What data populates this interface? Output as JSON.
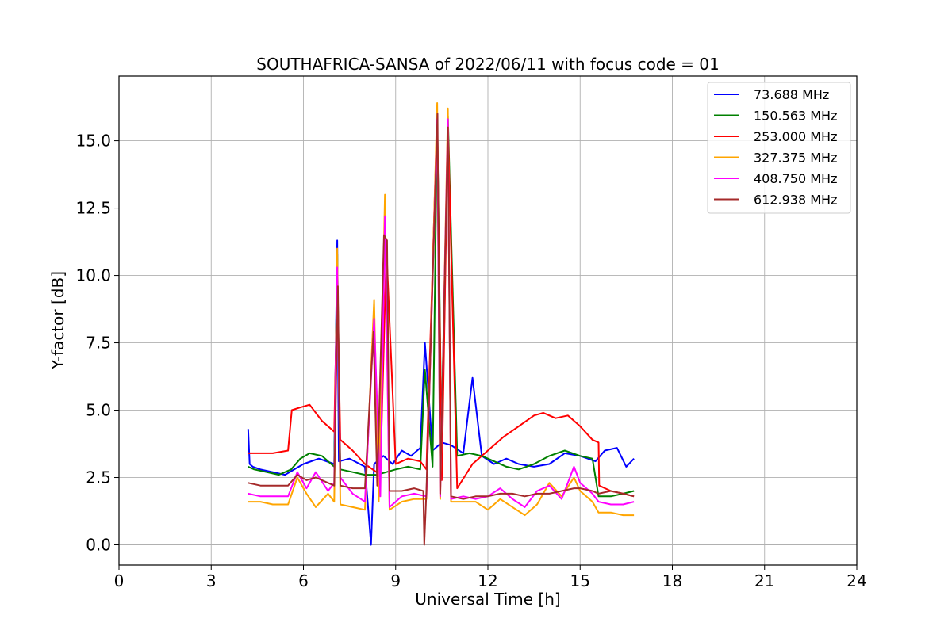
{
  "chart_data": {
    "type": "line",
    "title": "SOUTHAFRICA-SANSA of 2022/06/11 with focus code = 01",
    "xlabel": "Universal Time [h]",
    "ylabel": "Y-factor [dB]",
    "xlim": [
      0,
      24
    ],
    "ylim": [
      -0.75,
      17.4
    ],
    "xticks": [
      0,
      3,
      6,
      9,
      12,
      15,
      18,
      21,
      24
    ],
    "xtick_labels": [
      "0",
      "3",
      "6",
      "9",
      "12",
      "15",
      "18",
      "21",
      "24"
    ],
    "yticks": [
      0,
      2.5,
      5,
      7.5,
      10,
      12.5,
      15
    ],
    "ytick_labels": [
      "0.0",
      "2.5",
      "5.0",
      "7.5",
      "10.0",
      "12.5",
      "15.0"
    ],
    "grid": true,
    "legend_position": "top-right",
    "series": [
      {
        "name": " 73.688 MHz",
        "color": "#0000ff",
        "x": [
          4.2,
          4.25,
          4.35,
          4.6,
          5.0,
          5.4,
          5.7,
          6.0,
          6.5,
          7.0,
          7.1,
          7.15,
          7.5,
          8.0,
          8.2,
          8.3,
          8.6,
          8.9,
          9.2,
          9.5,
          9.8,
          9.95,
          10.2,
          10.5,
          10.8,
          11.2,
          11.5,
          11.8,
          12.2,
          12.6,
          13.0,
          13.5,
          14.0,
          14.5,
          15.0,
          15.5,
          15.8,
          16.2,
          16.5,
          16.75
        ],
        "y": [
          4.3,
          3.0,
          2.9,
          2.8,
          2.7,
          2.6,
          2.8,
          3.0,
          3.2,
          3.0,
          11.3,
          3.1,
          3.2,
          2.9,
          0.0,
          3.0,
          3.3,
          3.0,
          3.5,
          3.3,
          3.6,
          7.5,
          3.5,
          3.8,
          3.7,
          3.4,
          6.2,
          3.3,
          3.0,
          3.2,
          3.0,
          2.9,
          3.0,
          3.4,
          3.3,
          3.1,
          3.5,
          3.6,
          2.9,
          3.2
        ]
      },
      {
        "name": "150.563 MHz",
        "color": "#008000",
        "x": [
          4.2,
          4.4,
          4.8,
          5.2,
          5.6,
          5.9,
          6.2,
          6.6,
          7.0,
          7.1,
          7.2,
          7.6,
          8.0,
          8.4,
          8.7,
          9.0,
          9.4,
          9.8,
          9.95,
          10.2,
          10.35,
          10.5,
          10.7,
          11.0,
          11.4,
          11.8,
          12.2,
          12.6,
          13.0,
          13.5,
          14.0,
          14.5,
          15.0,
          15.4,
          15.6,
          16.0,
          16.4,
          16.75
        ],
        "y": [
          2.9,
          2.8,
          2.7,
          2.6,
          2.8,
          3.2,
          3.4,
          3.3,
          2.9,
          10.8,
          2.8,
          2.7,
          2.6,
          2.6,
          2.7,
          2.8,
          2.9,
          2.8,
          6.5,
          2.9,
          16.0,
          3.0,
          15.9,
          3.3,
          3.4,
          3.3,
          3.1,
          2.9,
          2.8,
          3.0,
          3.3,
          3.5,
          3.3,
          3.2,
          1.8,
          1.8,
          1.9,
          2.0
        ]
      },
      {
        "name": "253.000 MHz",
        "color": "#ff0000",
        "x": [
          4.2,
          4.6,
          5.0,
          5.5,
          5.62,
          5.9,
          6.2,
          6.6,
          7.0,
          7.1,
          7.2,
          7.6,
          8.0,
          8.5,
          8.7,
          9.0,
          9.4,
          9.8,
          10.0,
          10.35,
          10.5,
          10.7,
          11.0,
          11.5,
          12.0,
          12.5,
          13.0,
          13.5,
          13.8,
          14.2,
          14.6,
          15.0,
          15.4,
          15.6,
          15.62,
          16.0,
          16.4,
          16.75
        ],
        "y": [
          3.4,
          3.4,
          3.4,
          3.5,
          5.0,
          5.1,
          5.2,
          4.6,
          4.2,
          9.8,
          3.9,
          3.5,
          3.0,
          2.6,
          11.0,
          3.0,
          3.2,
          3.1,
          2.8,
          15.9,
          2.4,
          15.6,
          2.1,
          3.0,
          3.5,
          4.0,
          4.4,
          4.8,
          4.9,
          4.7,
          4.8,
          4.4,
          3.9,
          3.8,
          2.2,
          2.0,
          1.9,
          1.8
        ]
      },
      {
        "name": "327.375 MHz",
        "color": "#ffa500",
        "x": [
          4.2,
          4.6,
          5.0,
          5.5,
          5.8,
          6.1,
          6.4,
          6.8,
          7.0,
          7.1,
          7.2,
          7.6,
          8.0,
          8.3,
          8.45,
          8.65,
          8.8,
          9.2,
          9.6,
          10.0,
          10.35,
          10.45,
          10.7,
          10.8,
          11.2,
          11.6,
          12.0,
          12.4,
          12.8,
          13.2,
          13.6,
          14.0,
          14.4,
          14.8,
          15.0,
          15.4,
          15.6,
          16.0,
          16.4,
          16.75
        ],
        "y": [
          1.6,
          1.6,
          1.5,
          1.5,
          2.5,
          1.9,
          1.4,
          1.9,
          1.6,
          11.0,
          1.5,
          1.4,
          1.3,
          9.1,
          1.6,
          13.0,
          1.3,
          1.6,
          1.7,
          1.7,
          16.4,
          1.7,
          16.2,
          1.6,
          1.6,
          1.6,
          1.3,
          1.7,
          1.4,
          1.1,
          1.5,
          2.3,
          1.8,
          2.5,
          2.0,
          1.6,
          1.2,
          1.2,
          1.1,
          1.1
        ]
      },
      {
        "name": "408.750 MHz",
        "color": "#ff00ff",
        "x": [
          4.2,
          4.6,
          5.0,
          5.5,
          5.8,
          6.1,
          6.4,
          6.8,
          7.0,
          7.1,
          7.2,
          7.6,
          8.0,
          8.3,
          8.5,
          8.65,
          8.8,
          9.2,
          9.6,
          10.0,
          10.35,
          10.45,
          10.7,
          10.8,
          11.2,
          11.6,
          12.0,
          12.4,
          12.8,
          13.2,
          13.6,
          14.0,
          14.4,
          14.8,
          15.0,
          15.4,
          15.6,
          16.0,
          16.4,
          16.75
        ],
        "y": [
          1.9,
          1.8,
          1.8,
          1.8,
          2.7,
          2.1,
          2.7,
          2.0,
          2.3,
          10.3,
          2.5,
          1.9,
          1.6,
          8.4,
          1.8,
          12.2,
          1.4,
          1.8,
          1.9,
          1.8,
          15.8,
          1.8,
          15.8,
          1.7,
          1.8,
          1.7,
          1.8,
          2.1,
          1.7,
          1.4,
          2.0,
          2.2,
          1.7,
          2.9,
          2.3,
          1.9,
          1.6,
          1.5,
          1.5,
          1.6
        ]
      },
      {
        "name": "612.938 MHz",
        "color": "#a52a2a",
        "x": [
          4.2,
          4.6,
          5.0,
          5.5,
          5.8,
          6.1,
          6.4,
          6.8,
          7.0,
          7.12,
          7.2,
          7.6,
          8.0,
          8.28,
          8.4,
          8.62,
          8.72,
          8.8,
          9.2,
          9.6,
          9.9,
          9.93,
          10.0,
          10.36,
          10.45,
          10.7,
          10.8,
          11.2,
          11.6,
          12.0,
          12.4,
          12.8,
          13.2,
          13.6,
          14.0,
          14.4,
          14.8,
          15.0,
          15.4,
          15.6,
          16.0,
          16.4,
          16.75
        ],
        "y": [
          2.3,
          2.2,
          2.2,
          2.2,
          2.6,
          2.4,
          2.5,
          2.3,
          2.2,
          9.6,
          2.2,
          2.1,
          2.1,
          7.9,
          2.2,
          11.5,
          11.3,
          2.0,
          2.0,
          2.1,
          2.0,
          0.0,
          2.0,
          16.0,
          1.9,
          15.5,
          1.8,
          1.7,
          1.8,
          1.8,
          1.9,
          1.9,
          1.8,
          1.9,
          1.9,
          2.0,
          2.1,
          2.1,
          2.0,
          1.9,
          2.0,
          1.9,
          1.8
        ]
      }
    ]
  }
}
